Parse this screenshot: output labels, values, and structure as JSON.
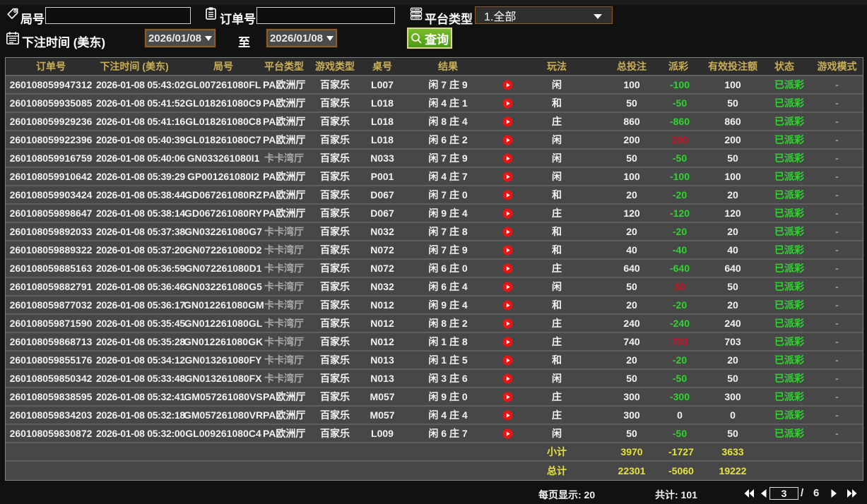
{
  "colors": {
    "page_bg": "#111111",
    "table_header_bg": "#2d2d2d",
    "table_header_text": "#c9ae56",
    "row_bg": "#474747",
    "row_separator": "#5e5e5e",
    "text_white": "#f2f2f2",
    "payout_negative_green": "#2ed52e",
    "payout_positive_red": "#cf1124",
    "status_green": "#2ed52e",
    "summary_yellow": "#e6e33c",
    "platform_dim_gray": "#a9a9a9",
    "date_border_orange": "#8a5c28",
    "search_button_green": "#5aa51f",
    "play_button_red": "#e81515"
  },
  "toolbar": {
    "round_label": "局号",
    "round_value": "",
    "order_label": "订单号",
    "order_value": "",
    "platform_label": "平台类型",
    "platform_value": "1.全部",
    "bet_time_label": "下注时间 (美东)",
    "date_from": "2026/01/08",
    "to_label": "至",
    "date_to": "2026/01/08",
    "search_label": "查询"
  },
  "table": {
    "headers": [
      "订单号",
      "下注时间 (美东)",
      "局号",
      "平台类型",
      "游戏类型",
      "桌号",
      "结果",
      "",
      "玩法",
      "总投注",
      "派彩",
      "有效投注额",
      "状态",
      "游戏模式"
    ],
    "rows": [
      {
        "order": "260108059947312",
        "time": "2026-01-08 05:43:02",
        "round": "GL007261080FL",
        "platform": "PA欧洲厅",
        "game": "百家乐",
        "table": "L007",
        "result": "闲 7 庄 9",
        "bet": "闲",
        "total": "100",
        "payout": "-100",
        "valid": "100",
        "status": "已派彩",
        "mode": "-"
      },
      {
        "order": "260108059935085",
        "time": "2026-01-08 05:41:52",
        "round": "GL018261080C9",
        "platform": "PA欧洲厅",
        "game": "百家乐",
        "table": "L018",
        "result": "闲 4 庄 1",
        "bet": "和",
        "total": "50",
        "payout": "-50",
        "valid": "50",
        "status": "已派彩",
        "mode": "-"
      },
      {
        "order": "260108059929236",
        "time": "2026-01-08 05:41:16",
        "round": "GL018261080C8",
        "platform": "PA欧洲厅",
        "game": "百家乐",
        "table": "L018",
        "result": "闲 8 庄 4",
        "bet": "庄",
        "total": "860",
        "payout": "-860",
        "valid": "860",
        "status": "已派彩",
        "mode": "-"
      },
      {
        "order": "260108059922396",
        "time": "2026-01-08 05:40:39",
        "round": "GL018261080C7",
        "platform": "PA欧洲厅",
        "game": "百家乐",
        "table": "L018",
        "result": "闲 6 庄 2",
        "bet": "闲",
        "total": "200",
        "payout": "200",
        "valid": "200",
        "status": "已派彩",
        "mode": "-"
      },
      {
        "order": "260108059916759",
        "time": "2026-01-08 05:40:06",
        "round": "GN033261080I1",
        "platform": "卡卡湾厅",
        "game": "百家乐",
        "table": "N033",
        "result": "闲 7 庄 9",
        "bet": "闲",
        "total": "50",
        "payout": "-50",
        "valid": "50",
        "status": "已派彩",
        "mode": "-"
      },
      {
        "order": "260108059910642",
        "time": "2026-01-08 05:39:29",
        "round": "GP001261080I2",
        "platform": "PA欧洲厅",
        "game": "百家乐",
        "table": "P001",
        "result": "闲 4 庄 7",
        "bet": "闲",
        "total": "100",
        "payout": "-100",
        "valid": "100",
        "status": "已派彩",
        "mode": "-"
      },
      {
        "order": "260108059903424",
        "time": "2026-01-08 05:38:44",
        "round": "GD067261080RZ",
        "platform": "PA欧洲厅",
        "game": "百家乐",
        "table": "D067",
        "result": "闲 7 庄 0",
        "bet": "和",
        "total": "20",
        "payout": "-20",
        "valid": "20",
        "status": "已派彩",
        "mode": "-"
      },
      {
        "order": "260108059898647",
        "time": "2026-01-08 05:38:14",
        "round": "GD067261080RY",
        "platform": "PA欧洲厅",
        "game": "百家乐",
        "table": "D067",
        "result": "闲 9 庄 4",
        "bet": "庄",
        "total": "120",
        "payout": "-120",
        "valid": "120",
        "status": "已派彩",
        "mode": "-"
      },
      {
        "order": "260108059892033",
        "time": "2026-01-08 05:37:38",
        "round": "GN032261080G7",
        "platform": "卡卡湾厅",
        "game": "百家乐",
        "table": "N032",
        "result": "闲 7 庄 8",
        "bet": "和",
        "total": "20",
        "payout": "-20",
        "valid": "20",
        "status": "已派彩",
        "mode": "-"
      },
      {
        "order": "260108059889322",
        "time": "2026-01-08 05:37:20",
        "round": "GN072261080D2",
        "platform": "卡卡湾厅",
        "game": "百家乐",
        "table": "N072",
        "result": "闲 7 庄 9",
        "bet": "和",
        "total": "40",
        "payout": "-40",
        "valid": "40",
        "status": "已派彩",
        "mode": "-"
      },
      {
        "order": "260108059885163",
        "time": "2026-01-08 05:36:59",
        "round": "GN072261080D1",
        "platform": "卡卡湾厅",
        "game": "百家乐",
        "table": "N072",
        "result": "闲 6 庄 0",
        "bet": "庄",
        "total": "640",
        "payout": "-640",
        "valid": "640",
        "status": "已派彩",
        "mode": "-"
      },
      {
        "order": "260108059882791",
        "time": "2026-01-08 05:36:46",
        "round": "GN032261080G5",
        "platform": "卡卡湾厅",
        "game": "百家乐",
        "table": "N032",
        "result": "闲 6 庄 4",
        "bet": "闲",
        "total": "50",
        "payout": "50",
        "valid": "50",
        "status": "已派彩",
        "mode": "-"
      },
      {
        "order": "260108059877032",
        "time": "2026-01-08 05:36:17",
        "round": "GN012261080GM",
        "platform": "卡卡湾厅",
        "game": "百家乐",
        "table": "N012",
        "result": "闲 9 庄 4",
        "bet": "和",
        "total": "20",
        "payout": "-20",
        "valid": "20",
        "status": "已派彩",
        "mode": "-"
      },
      {
        "order": "260108059871590",
        "time": "2026-01-08 05:35:45",
        "round": "GN012261080GL",
        "platform": "卡卡湾厅",
        "game": "百家乐",
        "table": "N012",
        "result": "闲 8 庄 2",
        "bet": "庄",
        "total": "240",
        "payout": "-240",
        "valid": "240",
        "status": "已派彩",
        "mode": "-"
      },
      {
        "order": "260108059868713",
        "time": "2026-01-08 05:35:28",
        "round": "GN012261080GK",
        "platform": "卡卡湾厅",
        "game": "百家乐",
        "table": "N012",
        "result": "闲 1 庄 8",
        "bet": "庄",
        "total": "740",
        "payout": "703",
        "valid": "703",
        "status": "已派彩",
        "mode": "-"
      },
      {
        "order": "260108059855176",
        "time": "2026-01-08 05:34:12",
        "round": "GN013261080FY",
        "platform": "卡卡湾厅",
        "game": "百家乐",
        "table": "N013",
        "result": "闲 1 庄 5",
        "bet": "和",
        "total": "20",
        "payout": "-20",
        "valid": "20",
        "status": "已派彩",
        "mode": "-"
      },
      {
        "order": "260108059850342",
        "time": "2026-01-08 05:33:48",
        "round": "GN013261080FX",
        "platform": "卡卡湾厅",
        "game": "百家乐",
        "table": "N013",
        "result": "闲 3 庄 6",
        "bet": "闲",
        "total": "50",
        "payout": "-50",
        "valid": "50",
        "status": "已派彩",
        "mode": "-"
      },
      {
        "order": "260108059838595",
        "time": "2026-01-08 05:32:41",
        "round": "GM057261080VS",
        "platform": "PA欧洲厅",
        "game": "百家乐",
        "table": "M057",
        "result": "闲 9 庄 0",
        "bet": "庄",
        "total": "300",
        "payout": "-300",
        "valid": "300",
        "status": "已派彩",
        "mode": "-"
      },
      {
        "order": "260108059834203",
        "time": "2026-01-08 05:32:18",
        "round": "GM057261080VR",
        "platform": "PA欧洲厅",
        "game": "百家乐",
        "table": "M057",
        "result": "闲 4 庄 4",
        "bet": "庄",
        "total": "300",
        "payout": "0",
        "valid": "0",
        "status": "已派彩",
        "mode": "-"
      },
      {
        "order": "260108059830872",
        "time": "2026-01-08 05:32:00",
        "round": "GL009261080C4",
        "platform": "PA欧洲厅",
        "game": "百家乐",
        "table": "L009",
        "result": "闲 6 庄 7",
        "bet": "闲",
        "total": "50",
        "payout": "-50",
        "valid": "50",
        "status": "已派彩",
        "mode": "-"
      }
    ],
    "subtotal": {
      "label": "小计",
      "total": "3970",
      "payout": "-1727",
      "valid": "3633"
    },
    "grand_total": {
      "label": "总计",
      "total": "22301",
      "payout": "-5060",
      "valid": "19222"
    }
  },
  "pager": {
    "per_page_text": "每页显示: 20",
    "total_text": "共计: 101",
    "page": "3",
    "separator": "/",
    "pages": "6"
  }
}
